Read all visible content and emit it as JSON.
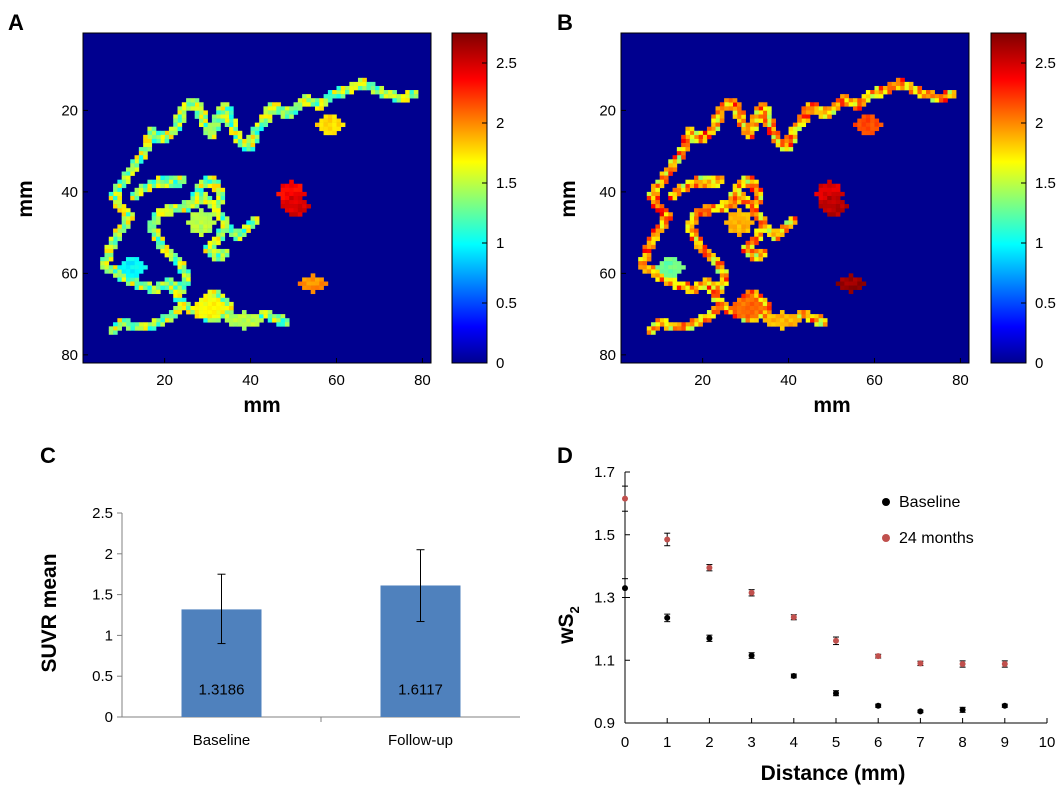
{
  "colors": {
    "heatmap_bg": "#00008f",
    "bar": "#4f81bd",
    "baseline_marker": "#000000",
    "followup_marker": "#c0504d",
    "jet": [
      "#00008f",
      "#0000ff",
      "#00ffff",
      "#ffff00",
      "#ff0000",
      "#800000"
    ]
  },
  "chart_data": [
    {
      "panel": "A",
      "type": "heatmap",
      "xlabel": "mm",
      "ylabel": "mm",
      "x_ticks": [
        "20",
        "40",
        "60",
        "80"
      ],
      "y_ticks": [
        "20",
        "40",
        "60",
        "80"
      ],
      "colorbar": {
        "range": [
          0,
          2.75
        ],
        "ticks": [
          "0",
          "0.5",
          "1",
          "1.5",
          "2",
          "2.5"
        ]
      },
      "variant": "baseline"
    },
    {
      "panel": "B",
      "type": "heatmap",
      "xlabel": "mm",
      "ylabel": "mm",
      "x_ticks": [
        "20",
        "40",
        "60",
        "80"
      ],
      "y_ticks": [
        "20",
        "40",
        "60",
        "80"
      ],
      "colorbar": {
        "range": [
          0,
          2.75
        ],
        "ticks": [
          "0",
          "0.5",
          "1",
          "1.5",
          "2",
          "2.5"
        ]
      },
      "variant": "followup"
    },
    {
      "panel": "C",
      "type": "bar",
      "title": "",
      "xlabel": "",
      "ylabel": "SUVR mean",
      "ylim": [
        0,
        2.5
      ],
      "y_ticks": [
        "0",
        "0.5",
        "1",
        "1.5",
        "2",
        "2.5"
      ],
      "categories": [
        "Baseline",
        "Follow-up"
      ],
      "values": [
        1.3186,
        1.6117
      ],
      "value_labels": [
        "1.3186",
        "1.6117"
      ],
      "error_low": [
        0.9,
        1.17
      ],
      "error_high": [
        1.75,
        2.05
      ],
      "grid": false
    },
    {
      "panel": "D",
      "type": "scatter",
      "title": "",
      "xlabel": "Distance (mm)",
      "ylabel": "wS",
      "ylabel_sub": "2",
      "xlim": [
        0,
        10
      ],
      "ylim": [
        0.9,
        1.7
      ],
      "x_ticks": [
        "0",
        "1",
        "2",
        "3",
        "4",
        "5",
        "6",
        "7",
        "8",
        "9",
        "10"
      ],
      "y_ticks": [
        "0.9",
        "1.1",
        "1.3",
        "1.5",
        "1.7"
      ],
      "legend_position": "top-right",
      "grid": false,
      "series": [
        {
          "name": "Baseline",
          "x": [
            0,
            1,
            2,
            3,
            4,
            5,
            6,
            7,
            8,
            9
          ],
          "y": [
            1.33,
            1.235,
            1.17,
            1.115,
            1.05,
            0.995,
            0.955,
            0.937,
            0.942,
            0.955
          ],
          "err": [
            0.03,
            0.012,
            0.01,
            0.009,
            0.006,
            0.008,
            0.005,
            0.004,
            0.008,
            0.005
          ]
        },
        {
          "name": "24 months",
          "x": [
            0,
            1,
            2,
            3,
            4,
            5,
            6,
            7,
            8,
            9
          ],
          "y": [
            1.615,
            1.485,
            1.395,
            1.315,
            1.237,
            1.162,
            1.113,
            1.09,
            1.088,
            1.088
          ],
          "err": [
            0.04,
            0.02,
            0.01,
            0.01,
            0.008,
            0.012,
            0.006,
            0.007,
            0.01,
            0.01
          ]
        }
      ]
    }
  ]
}
